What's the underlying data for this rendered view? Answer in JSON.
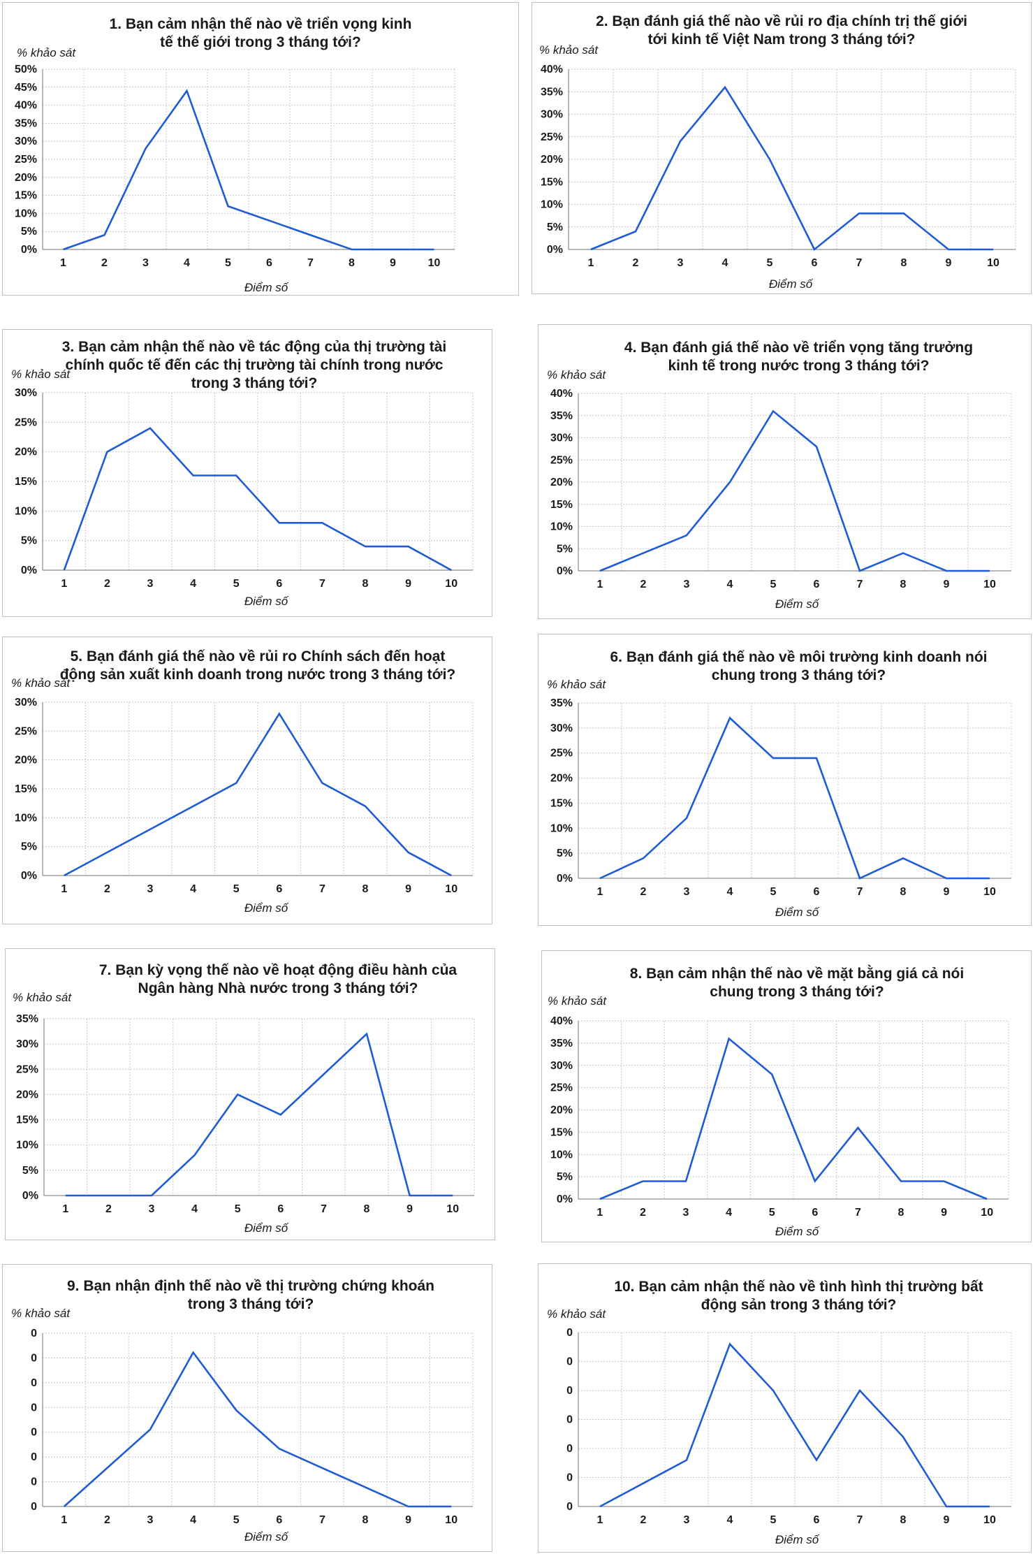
{
  "line_color": "#1f5bd6",
  "x_axis_label": "Điểm số",
  "y_axis_label": "% khảo sát",
  "chart_data": [
    {
      "type": "line",
      "title": "1. Bạn cảm nhận thế nào về triển vọng kinh tế thế giới trong 3 tháng tới?",
      "xlabel": "Điểm số",
      "ylabel": "% khảo sát",
      "x": [
        1,
        2,
        3,
        4,
        5,
        6,
        7,
        8,
        9,
        10
      ],
      "values": [
        0,
        4,
        28,
        44,
        12,
        8,
        4,
        0,
        0,
        0
      ],
      "ylim": [
        0,
        50
      ],
      "yticks": [
        "0%",
        "5%",
        "10%",
        "15%",
        "20%",
        "25%",
        "30%",
        "35%",
        "40%",
        "45%",
        "50%"
      ],
      "grid": true
    },
    {
      "type": "line",
      "title": "2. Bạn đánh giá thế nào về rủi ro địa chính trị thế giới tới kinh tế Việt Nam trong 3 tháng tới?",
      "xlabel": "Điểm số",
      "ylabel": "% khảo sát",
      "x": [
        1,
        2,
        3,
        4,
        5,
        6,
        7,
        8,
        9,
        10
      ],
      "values": [
        0,
        4,
        24,
        36,
        20,
        0,
        8,
        8,
        0,
        0
      ],
      "ylim": [
        0,
        40
      ],
      "yticks": [
        "0%",
        "5%",
        "10%",
        "15%",
        "20%",
        "25%",
        "30%",
        "35%",
        "40%"
      ],
      "grid": true
    },
    {
      "type": "line",
      "title": "3. Bạn cảm nhận thế nào về tác động của thị trường tài chính quốc tế đến các thị trường tài chính trong nước trong 3 tháng tới?",
      "xlabel": "Điểm số",
      "ylabel": "% khảo sát",
      "x": [
        1,
        2,
        3,
        4,
        5,
        6,
        7,
        8,
        9,
        10
      ],
      "values": [
        0,
        20,
        24,
        16,
        16,
        8,
        8,
        4,
        4,
        0
      ],
      "ylim": [
        0,
        30
      ],
      "yticks": [
        "0%",
        "5%",
        "10%",
        "15%",
        "20%",
        "25%",
        "30%"
      ],
      "grid": true
    },
    {
      "type": "line",
      "title": "4. Bạn đánh giá thế nào về triển vọng tăng trưởng kinh tế trong nước trong 3 tháng tới?",
      "xlabel": "Điểm số",
      "ylabel": "% khảo sát",
      "x": [
        1,
        2,
        3,
        4,
        5,
        6,
        7,
        8,
        9,
        10
      ],
      "values": [
        0,
        4,
        8,
        20,
        36,
        28,
        0,
        4,
        0,
        0
      ],
      "ylim": [
        0,
        40
      ],
      "yticks": [
        "0%",
        "5%",
        "10%",
        "15%",
        "20%",
        "25%",
        "30%",
        "35%",
        "40%"
      ],
      "grid": true
    },
    {
      "type": "line",
      "title": "5. Bạn đánh giá thế nào về rủi ro Chính sách đến hoạt động sản xuất kinh doanh trong nước trong 3 tháng tới?",
      "xlabel": "Điểm số",
      "ylabel": "% khảo sát",
      "x": [
        1,
        2,
        3,
        4,
        5,
        6,
        7,
        8,
        9,
        10
      ],
      "values": [
        0,
        4,
        8,
        12,
        16,
        28,
        16,
        12,
        4,
        0
      ],
      "ylim": [
        0,
        30
      ],
      "yticks": [
        "0%",
        "5%",
        "10%",
        "15%",
        "20%",
        "25%",
        "30%"
      ],
      "grid": true
    },
    {
      "type": "line",
      "title": "6. Bạn đánh giá thế nào về môi trường kinh doanh nói chung trong 3 tháng tới?",
      "xlabel": "Điểm số",
      "ylabel": "% khảo sát",
      "x": [
        1,
        2,
        3,
        4,
        5,
        6,
        7,
        8,
        9,
        10
      ],
      "values": [
        0,
        4,
        12,
        32,
        24,
        24,
        0,
        4,
        0,
        0
      ],
      "ylim": [
        0,
        35
      ],
      "yticks": [
        "0%",
        "5%",
        "10%",
        "15%",
        "20%",
        "25%",
        "30%",
        "35%"
      ],
      "grid": true
    },
    {
      "type": "line",
      "title": "7. Bạn kỳ vọng thế nào về hoạt động điều hành của Ngân hàng Nhà nước trong 3 tháng tới?",
      "xlabel": "Điểm số",
      "ylabel": "% khảo sát",
      "x": [
        1,
        2,
        3,
        4,
        5,
        6,
        7,
        8,
        9,
        10
      ],
      "values": [
        0,
        0,
        0,
        8,
        20,
        16,
        24,
        32,
        0,
        0
      ],
      "ylim": [
        0,
        35
      ],
      "yticks": [
        "0%",
        "5%",
        "10%",
        "15%",
        "20%",
        "25%",
        "30%",
        "35%"
      ],
      "grid": true
    },
    {
      "type": "line",
      "title": "8. Bạn cảm nhận thế nào về mặt bằng giá cả nói chung trong 3 tháng tới?",
      "xlabel": "Điểm số",
      "ylabel": "% khảo sát",
      "x": [
        1,
        2,
        3,
        4,
        5,
        6,
        7,
        8,
        9,
        10
      ],
      "values": [
        0,
        4,
        4,
        36,
        28,
        4,
        16,
        4,
        4,
        0
      ],
      "ylim": [
        0,
        40
      ],
      "yticks": [
        "0%",
        "5%",
        "10%",
        "15%",
        "20%",
        "25%",
        "30%",
        "35%",
        "40%"
      ],
      "grid": true
    },
    {
      "type": "line",
      "title": "9. Bạn nhận định thế nào về thị trường chứng khoán trong 3 tháng tới?",
      "xlabel": "Điểm số",
      "ylabel": "% khảo sát",
      "x": [
        1,
        2,
        3,
        4,
        5,
        6,
        7,
        8,
        9,
        10
      ],
      "values": [
        0,
        8,
        16,
        32,
        20,
        12,
        8,
        4,
        0,
        0
      ],
      "ylim": [
        0,
        36
      ],
      "yticks": [
        "0",
        "0",
        "0",
        "0",
        "0",
        "0",
        "0",
        "0"
      ],
      "grid": true
    },
    {
      "type": "line",
      "title": "10. Bạn cảm nhận thế nào về tình hình thị trường bất động sản trong 3 tháng tới?",
      "xlabel": "Điểm số",
      "ylabel": "% khảo sát",
      "x": [
        1,
        2,
        3,
        4,
        5,
        6,
        7,
        8,
        9,
        10
      ],
      "values": [
        0,
        4,
        8,
        28,
        20,
        8,
        20,
        12,
        0,
        0
      ],
      "ylim": [
        0,
        30
      ],
      "yticks": [
        "0",
        "0",
        "0",
        "0",
        "0",
        "0",
        "0"
      ],
      "grid": true
    }
  ]
}
